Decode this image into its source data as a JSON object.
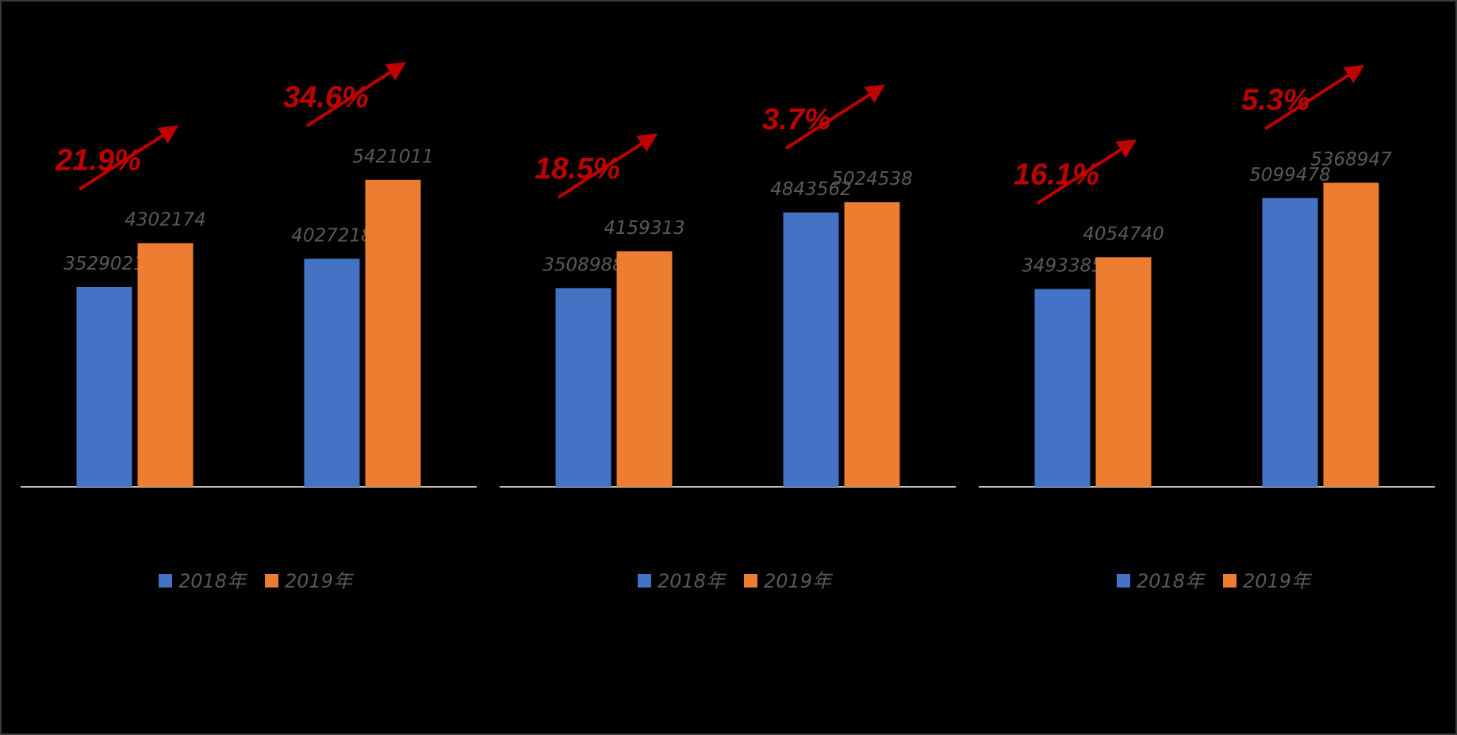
{
  "colors": {
    "s2018": "#4472c4",
    "s2019": "#ed7d31",
    "arrow": "#c00000",
    "axis": "#ffffff",
    "label": "#595959",
    "background": "#000000"
  },
  "chart_data": [
    {
      "type": "bar",
      "categories": [
        "",
        ""
      ],
      "series": [
        {
          "name": "2018年",
          "values": [
            3529021,
            4027218
          ]
        },
        {
          "name": "2019年",
          "values": [
            4302174,
            5421011
          ]
        }
      ],
      "growth": [
        "21.9%",
        "34.6%"
      ],
      "legend": [
        "2018年",
        "2019年"
      ],
      "legend_position": "bottom",
      "ylim": [
        0,
        7000000
      ],
      "grid": false
    },
    {
      "type": "bar",
      "categories": [
        "",
        ""
      ],
      "series": [
        {
          "name": "2018年",
          "values": [
            3508988,
            4843562
          ]
        },
        {
          "name": "2019年",
          "values": [
            4159313,
            5024538
          ]
        }
      ],
      "growth": [
        "18.5%",
        "3.7%"
      ],
      "legend": [
        "2018年",
        "2019年"
      ],
      "legend_position": "bottom",
      "ylim": [
        0,
        7000000
      ],
      "grid": false
    },
    {
      "type": "bar",
      "categories": [
        "",
        ""
      ],
      "series": [
        {
          "name": "2018年",
          "values": [
            3493385,
            5099478
          ]
        },
        {
          "name": "2019年",
          "values": [
            4054740,
            5368947
          ]
        }
      ],
      "growth": [
        "16.1%",
        "5.3%"
      ],
      "legend": [
        "2018年",
        "2019年"
      ],
      "legend_position": "bottom",
      "ylim": [
        0,
        7000000
      ],
      "grid": false
    }
  ]
}
